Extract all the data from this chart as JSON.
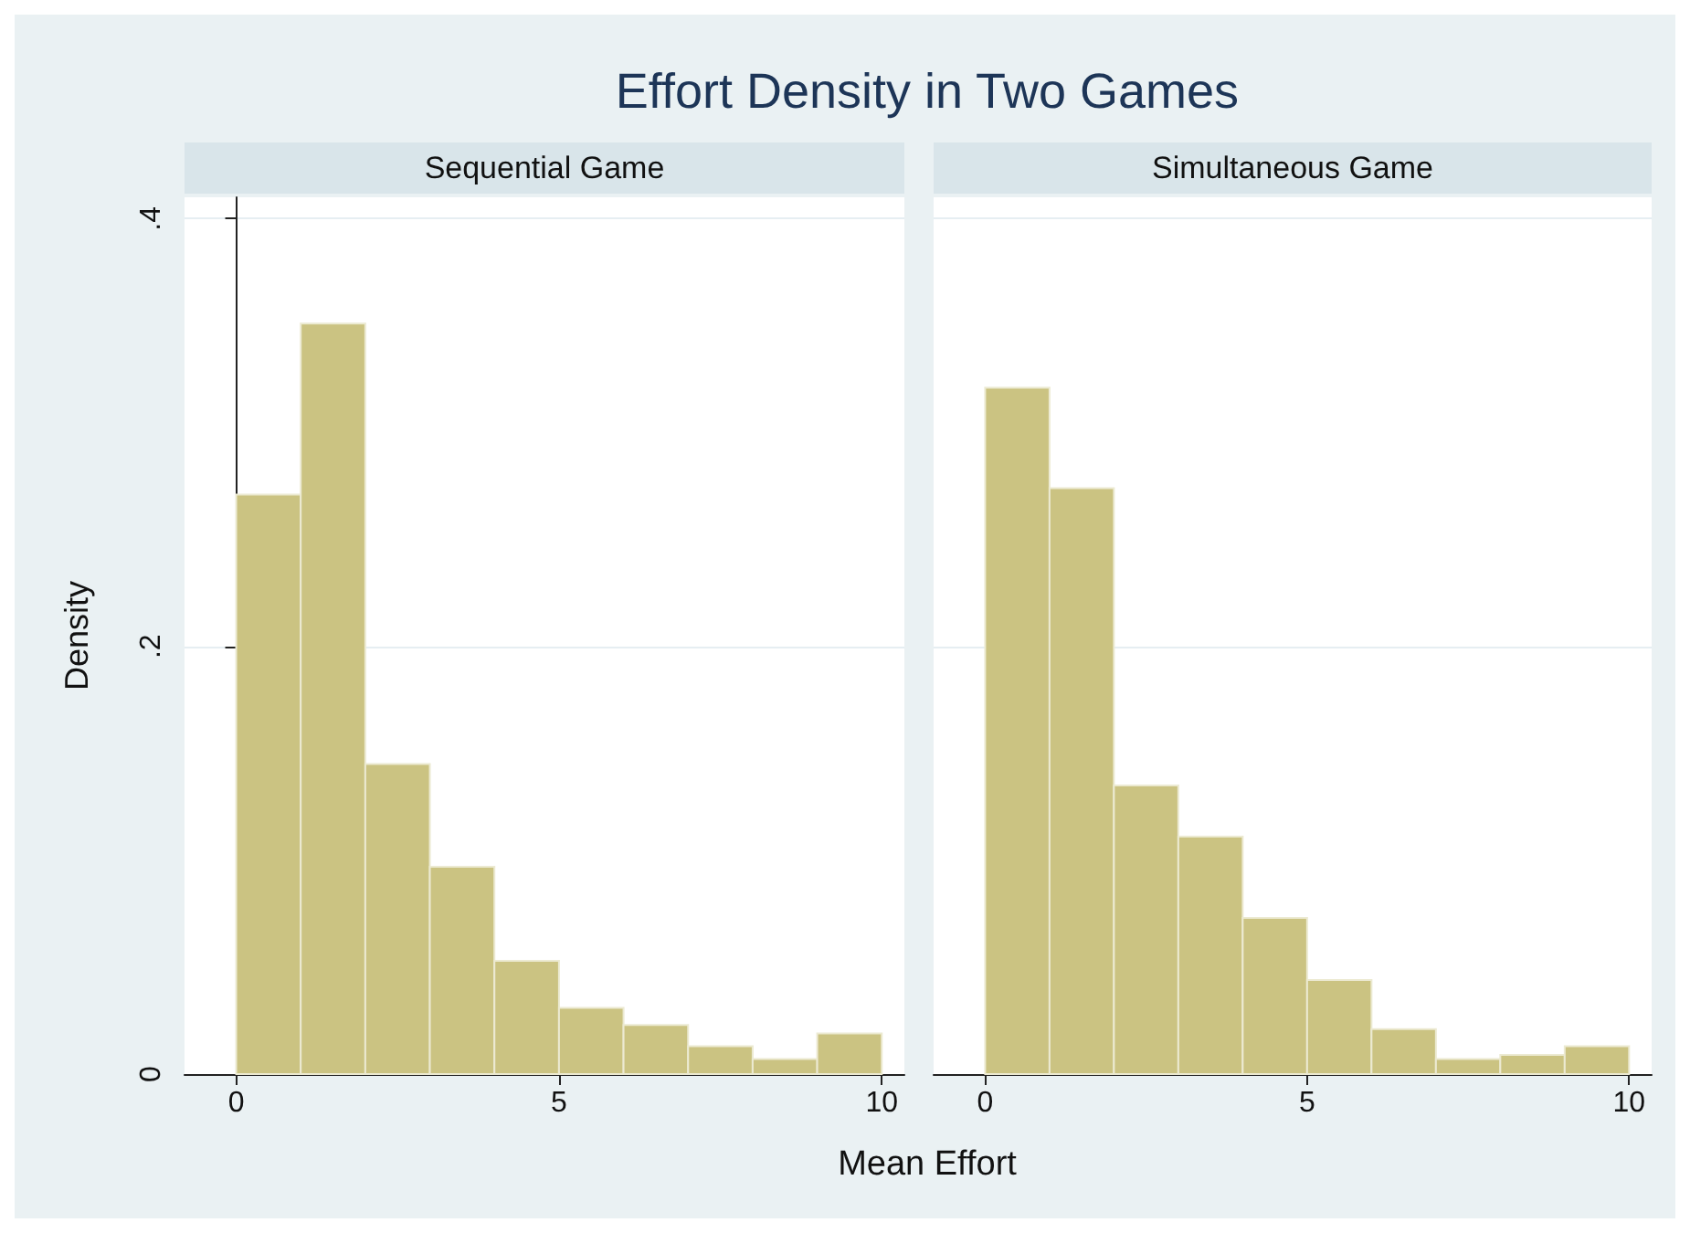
{
  "chart_data": [
    {
      "type": "histogram",
      "title": "Effort Density in Two Games",
      "subtitle": "Sequential Game",
      "xlabel": "Mean Effort",
      "ylabel": "Density",
      "color": "#cbc382",
      "bins": [
        0,
        1,
        2,
        3,
        4,
        5,
        6,
        7,
        8,
        9,
        10
      ],
      "values": [
        0.271,
        0.351,
        0.145,
        0.097,
        0.053,
        0.031,
        0.023,
        0.013,
        0.007,
        0.019
      ],
      "xlim": [
        -0.8,
        10.35
      ],
      "xticks": [
        0,
        5,
        10
      ],
      "ylim": [
        0,
        0.41
      ],
      "yticks": [
        0,
        {
          "value": 0.2,
          "label": ".2"
        },
        {
          "value": 0.4,
          "label": ".4"
        }
      ],
      "grid": "y"
    },
    {
      "type": "histogram",
      "subtitle": "Simultaneous Game",
      "color": "#cbc382",
      "bins": [
        0,
        1,
        2,
        3,
        4,
        5,
        6,
        7,
        8,
        9,
        10
      ],
      "values": [
        0.321,
        0.274,
        0.135,
        0.111,
        0.073,
        0.044,
        0.021,
        0.007,
        0.009,
        0.013
      ],
      "xlim": [
        -0.8,
        10.35
      ],
      "xticks": [
        0,
        5,
        10
      ],
      "ylim": [
        0,
        0.41
      ],
      "yticks": [
        0,
        0.2,
        0.4
      ],
      "grid": "y",
      "tick_labels": "x"
    }
  ]
}
